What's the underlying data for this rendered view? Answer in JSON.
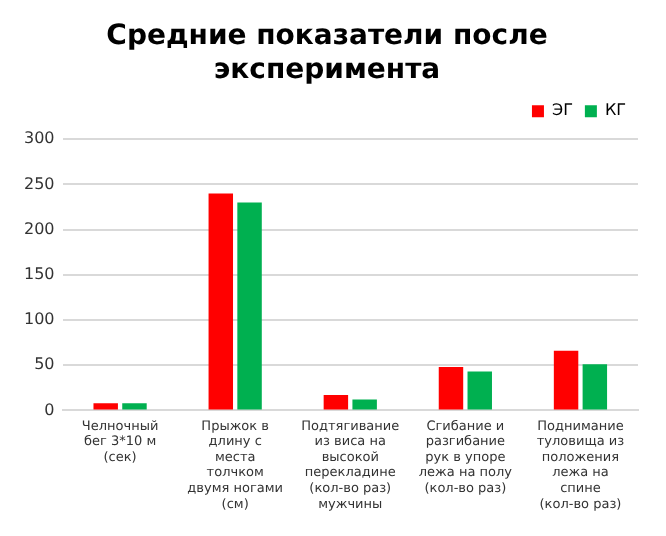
{
  "chart_data": {
    "type": "bar",
    "title": "Средние показатели после эксперимента",
    "categories": [
      "Челночный бег 3*10 м (сек)",
      "Прыжок в длину с места толчком двумя ногами (см)",
      "Подтягивание из виса на высокой перекладине (кол-во раз) мужчины",
      "Сгибание и разгибание рук в упоре лежа на полу (кол-во раз)",
      "Поднимание туловища из положения лежа на спине (кол-во раз)"
    ],
    "series": [
      {
        "name": "ЭГ",
        "color": "#ff0000",
        "values": [
          8,
          240,
          17,
          48,
          66
        ]
      },
      {
        "name": "КГ",
        "color": "#00b050",
        "values": [
          8,
          230,
          12,
          43,
          51
        ]
      }
    ],
    "ylim": [
      0,
      300
    ],
    "yticks": [
      0,
      50,
      100,
      150,
      200,
      250,
      300
    ],
    "grid": "y",
    "legend": "top"
  }
}
